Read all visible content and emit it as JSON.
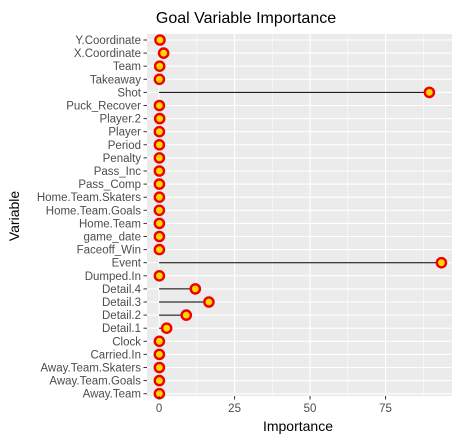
{
  "chart_data": {
    "type": "scatter",
    "title": "Goal Variable Importance",
    "xlabel": "Importance",
    "ylabel": "Variable",
    "xlim": [
      -4,
      97
    ],
    "x_ticks": [
      0,
      25,
      50,
      75
    ],
    "grid": true,
    "panel_background": "#ebebeb",
    "point_fill": "#ffd700",
    "point_stroke": "#ee0000",
    "segment_color": "#000000",
    "categories": [
      "Y.Coordinate",
      "X.Coordinate",
      "Team",
      "Takeaway",
      "Shot",
      "Puck_Recover",
      "Player.2",
      "Player",
      "Period",
      "Penalty",
      "Pass_Inc",
      "Pass_Comp",
      "Home.Team.Skaters",
      "Home.Team.Goals",
      "Home.Team",
      "game_date",
      "Faceoff_Win",
      "Event",
      "Dumped.In",
      "Detail.4",
      "Detail.3",
      "Detail.2",
      "Detail.1",
      "Clock",
      "Carried.In",
      "Away.Team.Skaters",
      "Away.Team.Goals",
      "Away.Team"
    ],
    "values": [
      0.3,
      1.5,
      0.2,
      0.1,
      89.5,
      0.1,
      0.2,
      0.1,
      0.1,
      0.1,
      0.1,
      0.1,
      0.1,
      0.1,
      0.1,
      0.1,
      0.1,
      93.5,
      0.1,
      12.0,
      16.5,
      9.0,
      2.5,
      0.1,
      0.1,
      0.1,
      0.1,
      0.1
    ]
  }
}
